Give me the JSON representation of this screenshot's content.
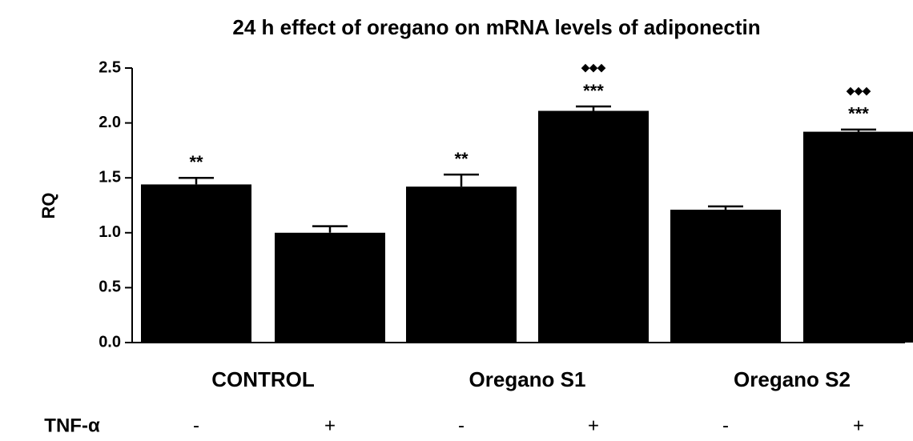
{
  "chart_data": {
    "type": "bar",
    "title": "24 h effect of oregano on mRNA levels of adiponectin",
    "ylabel": "RQ",
    "categories": [
      "-",
      "+",
      "-",
      "+",
      "-",
      "+"
    ],
    "values": [
      1.44,
      1.0,
      1.42,
      2.11,
      1.21,
      1.92
    ],
    "errors": [
      0.06,
      0.06,
      0.11,
      0.04,
      0.03,
      0.02
    ],
    "stars": [
      "**",
      null,
      "**",
      "***",
      null,
      "***"
    ],
    "diamonds": [
      null,
      null,
      null,
      "◆◆◆",
      null,
      "◆◆◆"
    ],
    "groups": [
      "CONTROL",
      "Oregano S1",
      "Oregano S2"
    ],
    "row_label": "TNF-α",
    "color": "#000000",
    "ylim": [
      0,
      2.5
    ],
    "yticks": [
      {
        "value": 0,
        "label": "0.0"
      },
      {
        "value": 0.5,
        "label": "0.5"
      },
      {
        "value": 1,
        "label": "1.0"
      },
      {
        "value": 1.5,
        "label": "1.5"
      },
      {
        "value": 2,
        "label": "2.0"
      },
      {
        "value": 2.5,
        "label": "2.5"
      }
    ],
    "grid": false
  }
}
